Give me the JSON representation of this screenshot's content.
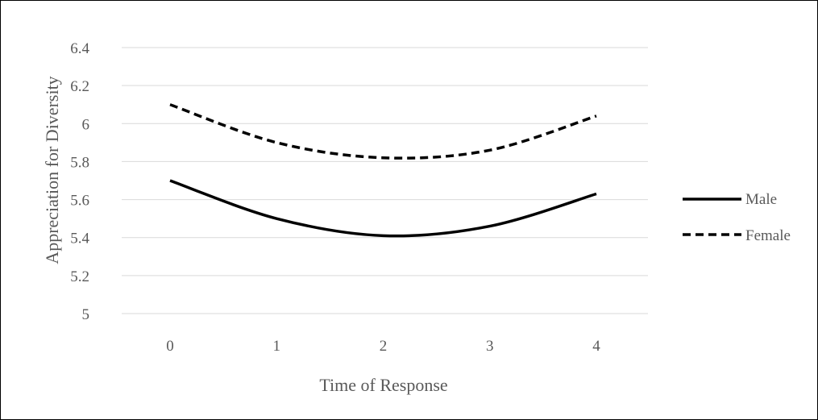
{
  "chart_data": {
    "type": "line",
    "title": "",
    "xlabel": "Time of Response",
    "ylabel": "Appreciation for Diversity",
    "x": [
      0,
      1,
      2,
      3,
      4
    ],
    "x_tick_labels": [
      "0",
      "1",
      "2",
      "3",
      "4"
    ],
    "y_tick_labels": [
      "5",
      "5.2",
      "5.4",
      "5.6",
      "5.8",
      "6",
      "6.2",
      "6.4"
    ],
    "ylim": [
      5,
      6.4
    ],
    "grid": true,
    "legend_position": "right",
    "smooth": true,
    "series": [
      {
        "name": "Male",
        "values": [
          5.7,
          5.5,
          5.41,
          5.46,
          5.63
        ],
        "color": "#000000",
        "line_style": "solid"
      },
      {
        "name": "Female",
        "values": [
          6.1,
          5.9,
          5.82,
          5.86,
          6.04
        ],
        "color": "#000000",
        "line_style": "dashed"
      }
    ],
    "gridline_color": "#d9d9d9",
    "text_color": "#595959"
  }
}
